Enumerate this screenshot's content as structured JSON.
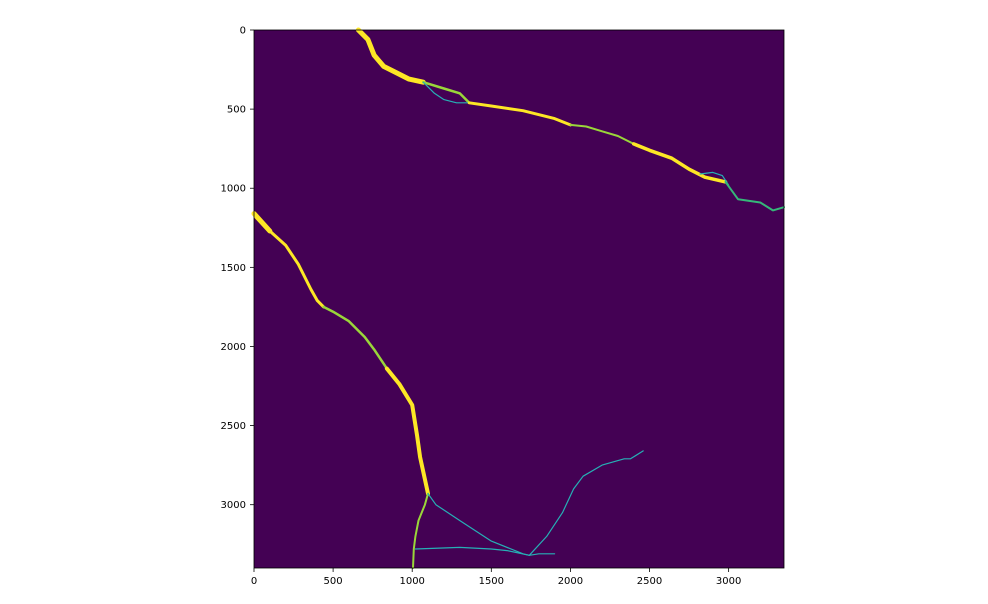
{
  "chart_data": {
    "type": "heatmap",
    "title": "",
    "xlabel": "",
    "ylabel": "",
    "xlim": [
      0,
      3350
    ],
    "ylim": [
      3400,
      0
    ],
    "y_inverted": true,
    "grid": false,
    "colormap": "viridis",
    "colors": {
      "background": "#440154",
      "strong": "#fde725",
      "medium": "#9ad63a",
      "weak": "#35b779",
      "thin": "#26b0b5"
    },
    "x_ticks": [
      0,
      500,
      1000,
      1500,
      2000,
      2500,
      3000
    ],
    "x_tick_labels": [
      "0",
      "500",
      "1000",
      "1500",
      "2000",
      "2500",
      "3000"
    ],
    "y_ticks": [
      0,
      500,
      1000,
      1500,
      2000,
      2500,
      3000
    ],
    "y_tick_labels": [
      "0",
      "500",
      "1000",
      "1500",
      "2000",
      "2500",
      "3000"
    ],
    "series": [
      {
        "color": "strong",
        "width": 5,
        "points": [
          [
            660,
            0
          ],
          [
            720,
            60
          ],
          [
            760,
            160
          ],
          [
            820,
            230
          ],
          [
            900,
            270
          ],
          [
            980,
            310
          ],
          [
            1070,
            330
          ]
        ]
      },
      {
        "color": "medium",
        "width": 2.5,
        "points": [
          [
            1070,
            330
          ],
          [
            1200,
            370
          ],
          [
            1300,
            400
          ],
          [
            1360,
            460
          ]
        ]
      },
      {
        "color": "thin",
        "width": 1.2,
        "points": [
          [
            1070,
            330
          ],
          [
            1140,
            400
          ],
          [
            1200,
            440
          ],
          [
            1280,
            460
          ],
          [
            1360,
            460
          ]
        ]
      },
      {
        "color": "strong",
        "width": 3,
        "points": [
          [
            1360,
            460
          ],
          [
            1500,
            480
          ],
          [
            1700,
            510
          ],
          [
            1900,
            560
          ],
          [
            2000,
            600
          ]
        ]
      },
      {
        "color": "medium",
        "width": 2,
        "points": [
          [
            2000,
            600
          ],
          [
            2100,
            610
          ],
          [
            2200,
            640
          ],
          [
            2300,
            670
          ],
          [
            2400,
            720
          ]
        ]
      },
      {
        "color": "strong",
        "width": 3.5,
        "points": [
          [
            2400,
            720
          ],
          [
            2500,
            760
          ],
          [
            2640,
            810
          ],
          [
            2750,
            880
          ],
          [
            2850,
            930
          ],
          [
            2980,
            960
          ]
        ]
      },
      {
        "color": "thin",
        "width": 1.2,
        "points": [
          [
            2820,
            910
          ],
          [
            2900,
            900
          ],
          [
            2960,
            920
          ],
          [
            3000,
            980
          ]
        ]
      },
      {
        "color": "weak",
        "width": 2,
        "points": [
          [
            2980,
            960
          ],
          [
            3060,
            1070
          ],
          [
            3200,
            1090
          ],
          [
            3280,
            1140
          ],
          [
            3350,
            1120
          ]
        ]
      },
      {
        "color": "strong",
        "width": 5,
        "points": [
          [
            0,
            1160
          ],
          [
            100,
            1270
          ]
        ]
      },
      {
        "color": "strong",
        "width": 3,
        "points": [
          [
            100,
            1270
          ],
          [
            200,
            1360
          ],
          [
            280,
            1480
          ],
          [
            360,
            1640
          ],
          [
            400,
            1710
          ],
          [
            440,
            1750
          ]
        ]
      },
      {
        "color": "medium",
        "width": 2.5,
        "points": [
          [
            440,
            1750
          ],
          [
            500,
            1780
          ],
          [
            600,
            1840
          ],
          [
            700,
            1940
          ],
          [
            760,
            2020
          ],
          [
            840,
            2140
          ]
        ]
      },
      {
        "color": "strong",
        "width": 4,
        "points": [
          [
            840,
            2140
          ],
          [
            920,
            2240
          ],
          [
            1000,
            2370
          ],
          [
            1030,
            2560
          ],
          [
            1050,
            2700
          ],
          [
            1100,
            2930
          ]
        ]
      },
      {
        "color": "medium",
        "width": 2,
        "points": [
          [
            1100,
            2930
          ],
          [
            1080,
            3000
          ],
          [
            1040,
            3100
          ],
          [
            1020,
            3200
          ],
          [
            1010,
            3280
          ],
          [
            1005,
            3400
          ]
        ]
      },
      {
        "color": "thin",
        "width": 1.2,
        "points": [
          [
            1100,
            2930
          ],
          [
            1150,
            3000
          ],
          [
            1300,
            3100
          ],
          [
            1500,
            3230
          ],
          [
            1700,
            3310
          ],
          [
            1740,
            3320
          ]
        ]
      },
      {
        "color": "thin",
        "width": 1.2,
        "points": [
          [
            1020,
            3280
          ],
          [
            1300,
            3270
          ],
          [
            1500,
            3280
          ],
          [
            1600,
            3290
          ],
          [
            1740,
            3320
          ],
          [
            1800,
            3310
          ],
          [
            1900,
            3310
          ]
        ]
      },
      {
        "color": "thin",
        "width": 1.2,
        "points": [
          [
            1740,
            3320
          ],
          [
            1850,
            3200
          ],
          [
            1950,
            3050
          ],
          [
            2020,
            2900
          ],
          [
            2080,
            2820
          ],
          [
            2200,
            2750
          ],
          [
            2340,
            2710
          ],
          [
            2380,
            2710
          ],
          [
            2460,
            2660
          ]
        ]
      }
    ]
  }
}
